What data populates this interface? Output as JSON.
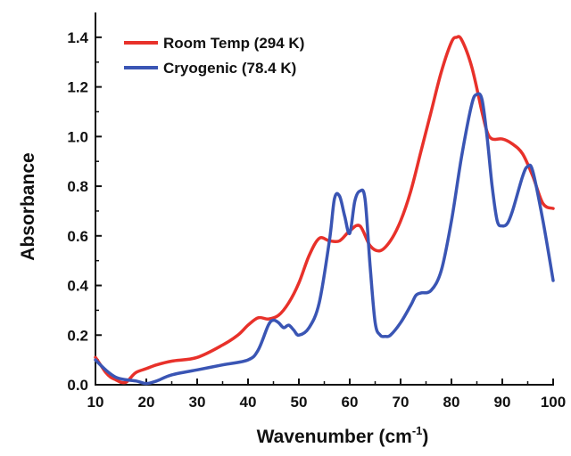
{
  "chart_data": {
    "type": "line",
    "title": "",
    "xlabel": {
      "main": "Wavenumber (cm",
      "sup": "-1",
      "close": ")"
    },
    "ylabel": "Absorbance",
    "xlim": [
      10,
      100
    ],
    "ylim": [
      0,
      1.5
    ],
    "xticks": [
      10,
      20,
      30,
      40,
      50,
      60,
      70,
      80,
      90,
      100
    ],
    "yticks": [
      0.0,
      0.2,
      0.4,
      0.6,
      0.8,
      1.0,
      1.2,
      1.4
    ],
    "grid": false,
    "legend_position": "top-left",
    "series": [
      {
        "name": "Room Temp (294 K)",
        "color": "#e8312a",
        "x": [
          10,
          11,
          12,
          13,
          14,
          15,
          16,
          17,
          18,
          20,
          22,
          25,
          30,
          35,
          38,
          40,
          42,
          44,
          46,
          48,
          50,
          52,
          54,
          56,
          58,
          60,
          62,
          64,
          66,
          68,
          70,
          72,
          74,
          76,
          78,
          80,
          81,
          82,
          84,
          86,
          87,
          88,
          90,
          92,
          94,
          96,
          98,
          100
        ],
        "y": [
          0.11,
          0.08,
          0.05,
          0.03,
          0.02,
          0.01,
          0.01,
          0.03,
          0.05,
          0.065,
          0.08,
          0.095,
          0.11,
          0.16,
          0.2,
          0.24,
          0.27,
          0.265,
          0.28,
          0.33,
          0.41,
          0.52,
          0.59,
          0.58,
          0.58,
          0.62,
          0.64,
          0.56,
          0.54,
          0.58,
          0.66,
          0.78,
          0.94,
          1.1,
          1.26,
          1.38,
          1.4,
          1.39,
          1.28,
          1.1,
          1.02,
          0.99,
          0.99,
          0.97,
          0.93,
          0.84,
          0.73,
          0.71
        ]
      },
      {
        "name": "Cryogenic (78.4 K)",
        "color": "#3a55b4",
        "x": [
          10,
          12,
          14,
          16,
          18,
          20,
          22,
          25,
          30,
          35,
          40,
          42,
          44,
          45,
          46,
          47,
          48,
          49,
          50,
          52,
          54,
          56,
          57,
          58,
          59,
          60,
          61,
          62,
          63,
          64,
          65,
          66,
          67,
          68,
          70,
          72,
          73,
          74,
          76,
          78,
          80,
          82,
          84,
          85,
          86,
          87,
          88,
          89,
          90,
          91,
          92,
          94,
          95,
          96,
          98,
          100
        ],
        "y": [
          0.1,
          0.06,
          0.03,
          0.02,
          0.015,
          0.005,
          0.015,
          0.04,
          0.06,
          0.08,
          0.1,
          0.14,
          0.24,
          0.26,
          0.25,
          0.23,
          0.24,
          0.22,
          0.2,
          0.23,
          0.33,
          0.58,
          0.75,
          0.76,
          0.68,
          0.61,
          0.74,
          0.78,
          0.75,
          0.48,
          0.25,
          0.2,
          0.195,
          0.2,
          0.25,
          0.32,
          0.36,
          0.37,
          0.38,
          0.46,
          0.66,
          0.92,
          1.13,
          1.17,
          1.15,
          1.0,
          0.8,
          0.66,
          0.64,
          0.65,
          0.7,
          0.84,
          0.88,
          0.86,
          0.66,
          0.42
        ]
      }
    ]
  }
}
